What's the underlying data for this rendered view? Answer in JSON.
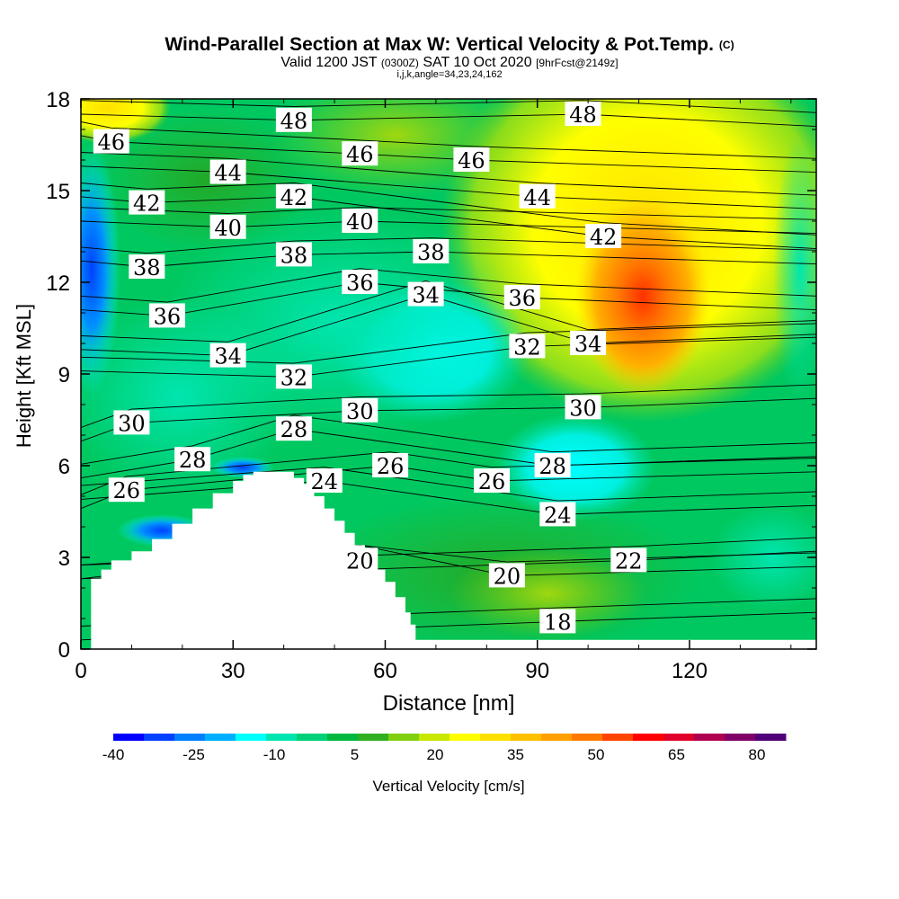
{
  "chart_data": {
    "type": "heatmap",
    "title": "Wind-Parallel Section at Max W: Vertical Velocity & Pot.Temp.",
    "title_mark": "(C)",
    "subtitle_main": "Valid 1200 JST",
    "subtitle_utc": "(0300Z)",
    "subtitle_date": "SAT 10 Oct 2020",
    "subtitle_fcst": "[9hrFcst@2149z]",
    "params": "i,j,k,angle=34,23,24,162",
    "xlabel": "Distance [nm]",
    "ylabel": "Height [Kft MSL]",
    "xlim": [
      0,
      145
    ],
    "ylim": [
      0,
      18
    ],
    "x_ticks": [
      "0",
      "30",
      "60",
      "90",
      "120"
    ],
    "y_ticks": [
      "0",
      "3",
      "6",
      "9",
      "12",
      "15",
      "18"
    ],
    "colorbar": {
      "label": "Vertical Velocity [cm/s]",
      "tick_labels": [
        "-40",
        "-25",
        "-10",
        "5",
        "20",
        "35",
        "50",
        "65",
        "80"
      ],
      "colors": [
        "#0000ff",
        "#0040ff",
        "#0080ff",
        "#00b0ff",
        "#00ffff",
        "#00e6b0",
        "#00d078",
        "#00b840",
        "#30b020",
        "#80d010",
        "#c8e800",
        "#ffff00",
        "#ffe000",
        "#ffc000",
        "#ffa000",
        "#ff7800",
        "#ff4400",
        "#ff0000",
        "#e0002a",
        "#b00050",
        "#800068",
        "#500078"
      ]
    },
    "contour_labels": [
      {
        "text": "48",
        "x": 42,
        "y": 17.3
      },
      {
        "text": "48",
        "x": 99,
        "y": 17.5
      },
      {
        "text": "46",
        "x": 6,
        "y": 16.6
      },
      {
        "text": "46",
        "x": 55,
        "y": 16.2
      },
      {
        "text": "46",
        "x": 77,
        "y": 16.0
      },
      {
        "text": "44",
        "x": 29,
        "y": 15.6
      },
      {
        "text": "44",
        "x": 90,
        "y": 14.8
      },
      {
        "text": "42",
        "x": 13,
        "y": 14.6
      },
      {
        "text": "42",
        "x": 42,
        "y": 14.8
      },
      {
        "text": "42",
        "x": 103,
        "y": 13.5
      },
      {
        "text": "40",
        "x": 29,
        "y": 13.8
      },
      {
        "text": "40",
        "x": 55,
        "y": 14.0
      },
      {
        "text": "38",
        "x": 13,
        "y": 12.5
      },
      {
        "text": "38",
        "x": 42,
        "y": 12.9
      },
      {
        "text": "38",
        "x": 69,
        "y": 13.0
      },
      {
        "text": "36",
        "x": 55,
        "y": 12.0
      },
      {
        "text": "36",
        "x": 87,
        "y": 11.5
      },
      {
        "text": "36",
        "x": 17,
        "y": 10.9
      },
      {
        "text": "34",
        "x": 68,
        "y": 11.6
      },
      {
        "text": "34",
        "x": 29,
        "y": 9.6
      },
      {
        "text": "34",
        "x": 100,
        "y": 10.0
      },
      {
        "text": "32",
        "x": 88,
        "y": 9.9
      },
      {
        "text": "32",
        "x": 42,
        "y": 8.9
      },
      {
        "text": "30",
        "x": 55,
        "y": 7.8
      },
      {
        "text": "30",
        "x": 10,
        "y": 7.4
      },
      {
        "text": "30",
        "x": 99,
        "y": 7.9
      },
      {
        "text": "28",
        "x": 42,
        "y": 7.2
      },
      {
        "text": "28",
        "x": 22,
        "y": 6.2
      },
      {
        "text": "28",
        "x": 93,
        "y": 6.0
      },
      {
        "text": "26",
        "x": 61,
        "y": 6.0
      },
      {
        "text": "26",
        "x": 81,
        "y": 5.5
      },
      {
        "text": "26",
        "x": 9,
        "y": 5.2
      },
      {
        "text": "24",
        "x": 48,
        "y": 5.5
      },
      {
        "text": "24",
        "x": 94,
        "y": 4.4
      },
      {
        "text": "22",
        "x": 108,
        "y": 2.9
      },
      {
        "text": "20",
        "x": 55,
        "y": 2.9
      },
      {
        "text": "20",
        "x": 84,
        "y": 2.4
      },
      {
        "text": "18",
        "x": 94,
        "y": 0.9
      }
    ],
    "terrain_profile": {
      "x": [
        0,
        2,
        4,
        6,
        10,
        14,
        18,
        22,
        26,
        30,
        32,
        34,
        40,
        42,
        44,
        46,
        48,
        50,
        52,
        54,
        56,
        58,
        60,
        62,
        64,
        65,
        66,
        145
      ],
      "y": [
        0,
        2.3,
        2.6,
        2.9,
        3.2,
        3.6,
        4.1,
        4.6,
        5.1,
        5.5,
        5.7,
        5.8,
        5.8,
        5.6,
        5.4,
        5.0,
        4.6,
        4.2,
        3.8,
        3.4,
        3.0,
        2.6,
        2.2,
        1.7,
        1.2,
        0.8,
        0.3,
        0.3
      ]
    },
    "grid": false
  }
}
